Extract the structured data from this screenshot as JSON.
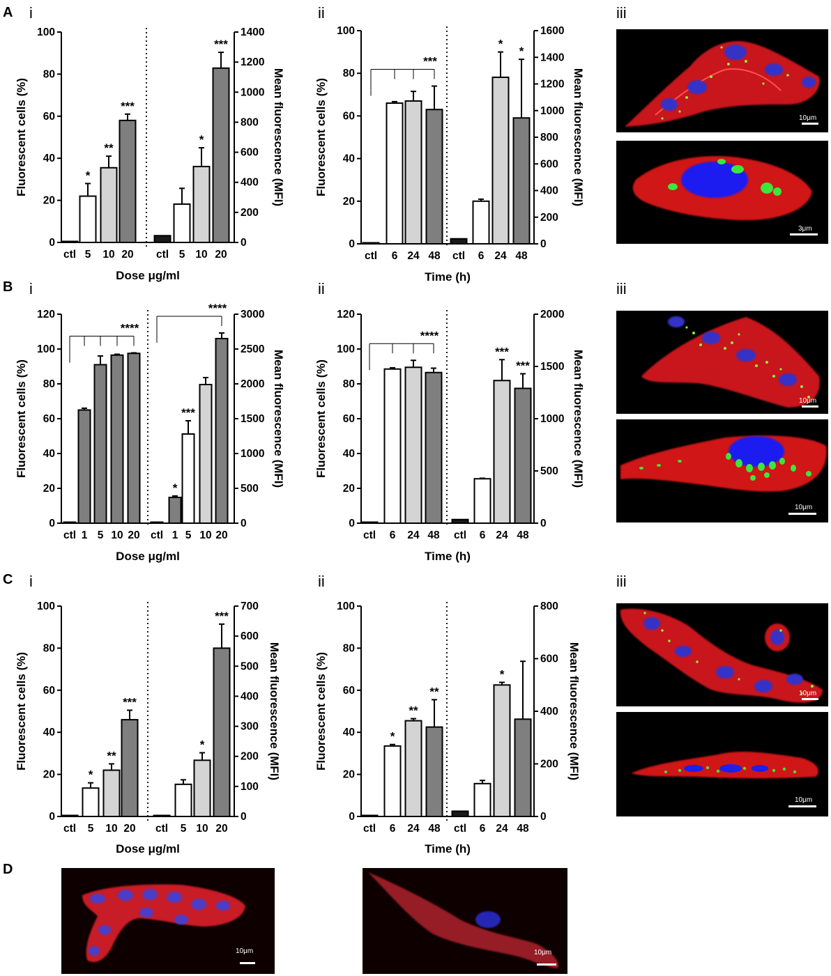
{
  "panel_labels": {
    "A": "A",
    "B": "B",
    "C": "C",
    "D": "D"
  },
  "subpanel_labels": {
    "i": "i",
    "ii": "ii",
    "iii": "iii"
  },
  "axis_titles": {
    "left": "Fluorescent cells (%)",
    "right": "Mean fluorescence (MFI)",
    "dose": "Dose μg/ml",
    "time": "Time (h)"
  },
  "micrographs": [
    {
      "panel": "A",
      "kind": "confocal",
      "scale_label": "10μm"
    },
    {
      "panel": "A",
      "kind": "3d-render",
      "scale_label": "3μm"
    },
    {
      "panel": "B",
      "kind": "confocal",
      "scale_label": "10μm"
    },
    {
      "panel": "B",
      "kind": "3d-render",
      "scale_label": "10μm"
    },
    {
      "panel": "C",
      "kind": "confocal",
      "scale_label": "10μm"
    },
    {
      "panel": "C",
      "kind": "3d-render",
      "scale_label": "10μm"
    },
    {
      "panel": "D",
      "kind": "confocal",
      "scale_label": "10μm"
    },
    {
      "panel": "D",
      "kind": "confocal",
      "scale_label": "10μm"
    }
  ],
  "chart_data": [
    {
      "id": "A-i",
      "type": "bar",
      "xlabel": "Dose μg/ml",
      "ylabel": "Fluorescent cells (%)",
      "y2label": "Mean fluorescence (MFI)",
      "ylim": [
        0,
        100
      ],
      "yticks": [
        0,
        20,
        40,
        60,
        80,
        100
      ],
      "y2lim": [
        0,
        1400
      ],
      "y2ticks": [
        0,
        200,
        400,
        600,
        800,
        1000,
        1200,
        1400
      ],
      "groups": [
        {
          "axis": "left",
          "categories": [
            "ctl",
            "5",
            "10",
            "20"
          ],
          "values": [
            0.5,
            22,
            35.5,
            58
          ],
          "errors": [
            0,
            6,
            5.5,
            3
          ],
          "fills": [
            "#1a1a1a",
            "#ffffff",
            "#d4d4d4",
            "#7f7f7f"
          ],
          "sig": [
            "",
            "*",
            "**",
            "***"
          ]
        },
        {
          "axis": "right",
          "categories": [
            "ctl",
            "5",
            "10",
            "20"
          ],
          "values": [
            45,
            255,
            505,
            1160
          ],
          "errors": [
            0,
            105,
            125,
            105
          ],
          "fills": [
            "#1a1a1a",
            "#ffffff",
            "#d4d4d4",
            "#7f7f7f"
          ],
          "sig": [
            "",
            "",
            "*",
            "***"
          ]
        }
      ],
      "brackets": []
    },
    {
      "id": "A-ii",
      "type": "bar",
      "xlabel": "Time (h)",
      "ylabel": "Fluorescent cells (%)",
      "y2label": "Mean fluorescence (MFI)",
      "ylim": [
        0,
        100
      ],
      "yticks": [
        0,
        20,
        40,
        60,
        80,
        100
      ],
      "y2lim": [
        0,
        1600
      ],
      "y2ticks": [
        0,
        200,
        400,
        600,
        800,
        1000,
        1200,
        1400,
        1600
      ],
      "groups": [
        {
          "axis": "left",
          "categories": [
            "ctl",
            "6",
            "24",
            "48"
          ],
          "values": [
            0.5,
            66,
            67,
            63
          ],
          "errors": [
            0,
            0.7,
            4.5,
            11
          ],
          "fills": [
            "#1a1a1a",
            "#ffffff",
            "#d4d4d4",
            "#7f7f7f"
          ],
          "sig": [
            "",
            "",
            "",
            ""
          ]
        },
        {
          "axis": "right",
          "categories": [
            "ctl",
            "6",
            "24",
            "48"
          ],
          "values": [
            38,
            320,
            1250,
            945
          ],
          "errors": [
            0,
            15,
            190,
            440
          ],
          "fills": [
            "#1a1a1a",
            "#ffffff",
            "#d4d4d4",
            "#7f7f7f"
          ],
          "sig": [
            "",
            "",
            "*",
            "*"
          ]
        }
      ],
      "brackets": [
        {
          "group": 0,
          "from": 0,
          "to": [
            1,
            2,
            3
          ],
          "label": "***"
        }
      ]
    },
    {
      "id": "B-i",
      "type": "bar",
      "xlabel": "Dose μg/ml",
      "ylabel": "Fluorescent cells (%)",
      "y2label": "Mean fluorescence (MFI)",
      "ylim": [
        0,
        120
      ],
      "yticks": [
        0,
        20,
        40,
        60,
        80,
        100,
        120
      ],
      "y2lim": [
        0,
        3000
      ],
      "y2ticks": [
        0,
        500,
        1000,
        1500,
        2000,
        2500,
        3000
      ],
      "groups": [
        {
          "axis": "left",
          "categories": [
            "ctl",
            "1",
            "5",
            "10",
            "20"
          ],
          "values": [
            0.5,
            65,
            91,
            96.5,
            97.5
          ],
          "errors": [
            0,
            1,
            5,
            0.5,
            0.3
          ],
          "fills": [
            "#1a1a1a",
            "#7f7f7f",
            "#7f7f7f",
            "#7f7f7f",
            "#7f7f7f"
          ],
          "sig": [
            "",
            "",
            "",
            "",
            ""
          ]
        },
        {
          "axis": "right",
          "categories": [
            "ctl",
            "1",
            "5",
            "10",
            "20"
          ],
          "values": [
            10,
            370,
            1280,
            1990,
            2650
          ],
          "errors": [
            0,
            20,
            190,
            100,
            80
          ],
          "fills": [
            "#1a1a1a",
            "#7f7f7f",
            "#ffffff",
            "#d4d4d4",
            "#7f7f7f"
          ],
          "sig": [
            "",
            "*",
            "***",
            "",
            ""
          ]
        }
      ],
      "brackets": [
        {
          "group": 0,
          "from": 0,
          "to": [
            1,
            2,
            3,
            4
          ],
          "label": "****"
        },
        {
          "group": 1,
          "from": 0,
          "to": [
            4
          ],
          "label": "****"
        }
      ]
    },
    {
      "id": "B-ii",
      "type": "bar",
      "xlabel": "Time (h)",
      "ylabel": "Fluorescent cells (%)",
      "y2label": "Mean fluorescence (MFI)",
      "ylim": [
        0,
        120
      ],
      "yticks": [
        0,
        20,
        40,
        60,
        80,
        100,
        120
      ],
      "y2lim": [
        0,
        2000
      ],
      "y2ticks": [
        0,
        500,
        1000,
        1500,
        2000
      ],
      "groups": [
        {
          "axis": "left",
          "categories": [
            "ctl",
            "6",
            "24",
            "48"
          ],
          "values": [
            0.5,
            88.5,
            89.5,
            86.5
          ],
          "errors": [
            0,
            0.7,
            4,
            2.5
          ],
          "fills": [
            "#1a1a1a",
            "#ffffff",
            "#d4d4d4",
            "#7f7f7f"
          ],
          "sig": [
            "",
            "",
            "",
            ""
          ]
        },
        {
          "axis": "right",
          "categories": [
            "ctl",
            "6",
            "24",
            "48"
          ],
          "values": [
            35,
            425,
            1365,
            1290
          ],
          "errors": [
            0,
            5,
            200,
            140
          ],
          "fills": [
            "#1a1a1a",
            "#ffffff",
            "#d4d4d4",
            "#7f7f7f"
          ],
          "sig": [
            "",
            "",
            "***",
            "***"
          ]
        }
      ],
      "brackets": [
        {
          "group": 0,
          "from": 0,
          "to": [
            1,
            2,
            3
          ],
          "label": "****"
        }
      ]
    },
    {
      "id": "C-i",
      "type": "bar",
      "xlabel": "Dose μg/ml",
      "ylabel": "Fluorescent cells (%)",
      "y2label": "Mean fluorescence (MFI)",
      "ylim": [
        0,
        100
      ],
      "yticks": [
        0,
        20,
        40,
        60,
        80,
        100
      ],
      "y2lim": [
        0,
        700
      ],
      "y2ticks": [
        0,
        100,
        200,
        300,
        400,
        500,
        600,
        700
      ],
      "groups": [
        {
          "axis": "left",
          "categories": [
            "ctl",
            "5",
            "10",
            "20"
          ],
          "values": [
            0.5,
            13.5,
            22,
            46
          ],
          "errors": [
            0,
            2.5,
            3,
            4.5
          ],
          "fills": [
            "#1a1a1a",
            "#ffffff",
            "#d4d4d4",
            "#7f7f7f"
          ],
          "sig": [
            "",
            "*",
            "**",
            "***"
          ]
        },
        {
          "axis": "right",
          "categories": [
            "ctl",
            "5",
            "10",
            "20"
          ],
          "values": [
            3,
            107,
            187,
            560
          ],
          "errors": [
            0,
            15,
            25,
            80
          ],
          "fills": [
            "#1a1a1a",
            "#ffffff",
            "#d4d4d4",
            "#7f7f7f"
          ],
          "sig": [
            "",
            "",
            "*",
            "***"
          ]
        }
      ],
      "brackets": []
    },
    {
      "id": "C-ii",
      "type": "bar",
      "xlabel": "Time (h)",
      "ylabel": "Fluorescent cells (%)",
      "y2label": "Mean fluorescence (MFI)",
      "ylim": [
        0,
        100
      ],
      "yticks": [
        0,
        20,
        40,
        60,
        80,
        100
      ],
      "y2lim": [
        0,
        800
      ],
      "y2ticks": [
        0,
        200,
        400,
        600,
        800
      ],
      "groups": [
        {
          "axis": "left",
          "categories": [
            "ctl",
            "6",
            "24",
            "48"
          ],
          "values": [
            0.5,
            33.5,
            45.5,
            42.5
          ],
          "errors": [
            0,
            0.7,
            1,
            13
          ],
          "fills": [
            "#1a1a1a",
            "#ffffff",
            "#d4d4d4",
            "#7f7f7f"
          ],
          "sig": [
            "",
            "*",
            "**",
            "**"
          ]
        },
        {
          "axis": "right",
          "categories": [
            "ctl",
            "6",
            "24",
            "48"
          ],
          "values": [
            20,
            125,
            500,
            370
          ],
          "errors": [
            0,
            12,
            10,
            220
          ],
          "fills": [
            "#1a1a1a",
            "#ffffff",
            "#d4d4d4",
            "#7f7f7f"
          ],
          "sig": [
            "",
            "",
            "*",
            ""
          ]
        }
      ],
      "brackets": []
    }
  ]
}
